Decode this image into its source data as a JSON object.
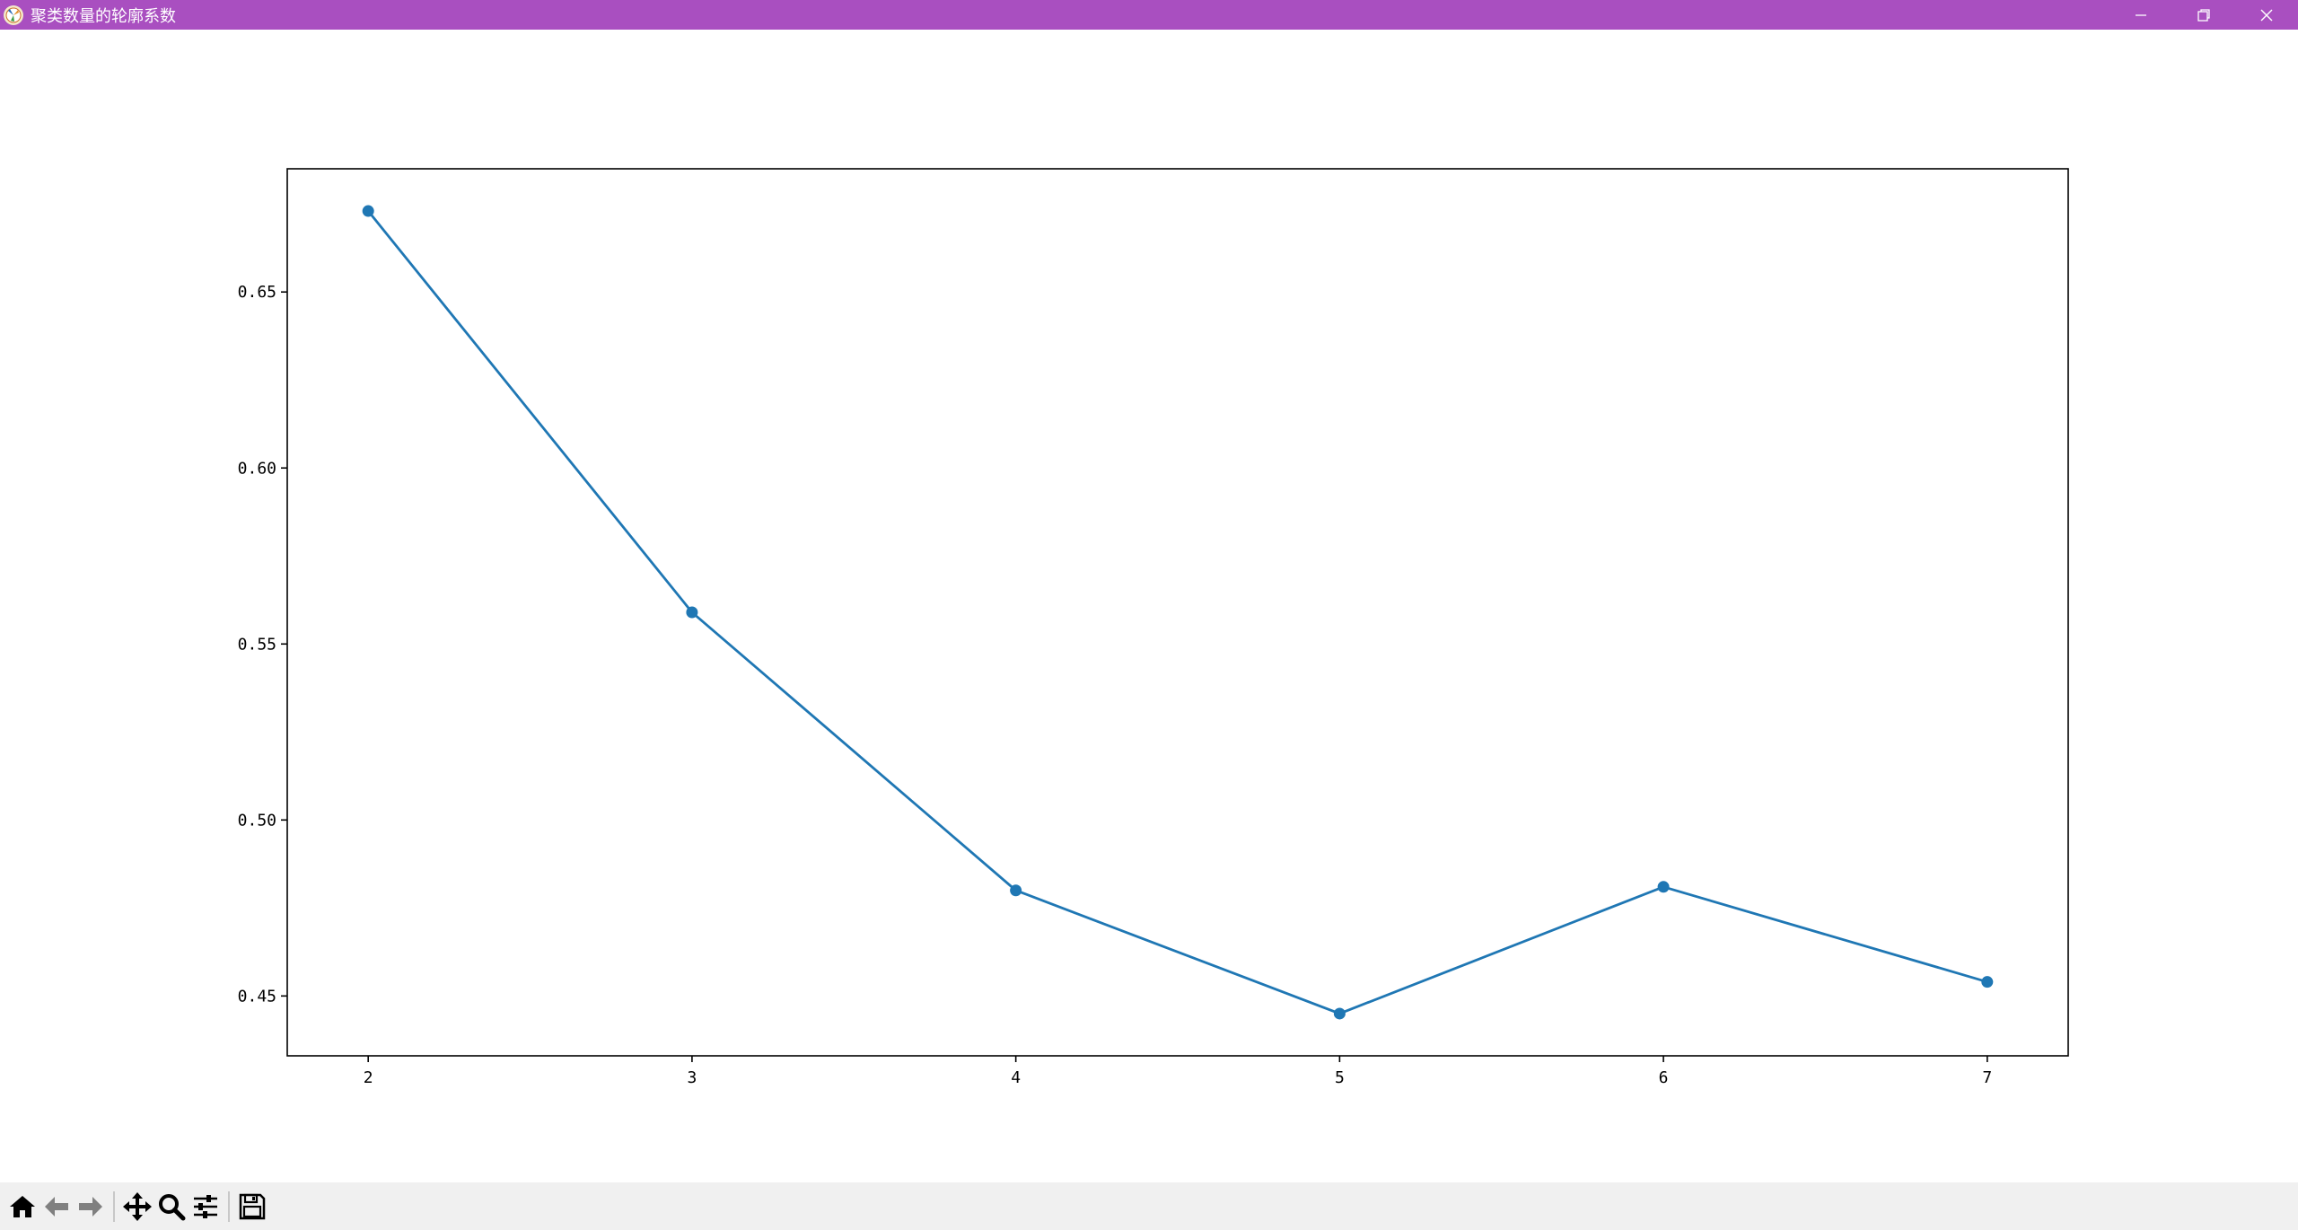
{
  "window": {
    "title": "聚类数量的轮廓系数",
    "icons": {
      "app": "matplotlib-icon",
      "minimize": "minimize-icon",
      "restore": "restore-icon",
      "close": "close-icon"
    }
  },
  "toolbar": {
    "buttons": [
      "home-icon",
      "back-arrow-icon",
      "forward-arrow-icon",
      "pan-icon",
      "zoom-icon",
      "subplots-config-icon",
      "save-icon"
    ]
  },
  "chart_data": {
    "type": "line",
    "x": [
      2,
      3,
      4,
      5,
      6,
      7
    ],
    "series": [
      {
        "values": [
          0.673,
          0.559,
          0.48,
          0.445,
          0.481,
          0.454
        ],
        "color": "#1f77b4",
        "marker": "circle"
      }
    ],
    "xticks": [
      "2",
      "3",
      "4",
      "5",
      "6",
      "7"
    ],
    "yticks": [
      "0.45",
      "0.50",
      "0.55",
      "0.60",
      "0.65"
    ],
    "xlim": [
      1.75,
      7.25
    ],
    "ylim": [
      0.433,
      0.685
    ],
    "grid": false
  }
}
